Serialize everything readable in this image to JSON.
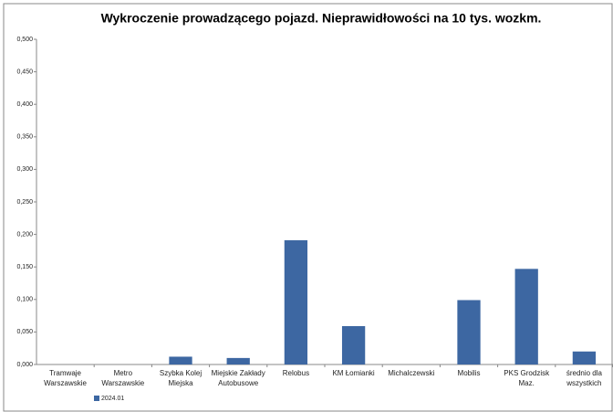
{
  "chart_data": {
    "type": "bar",
    "title": "Wykroczenie prowadzącego pojazd. Nieprawidłowości na 10 tys. wozkm.",
    "categories": [
      "Tramwaje\nWarszawskie",
      "Metro\nWarszawskie",
      "Szybka Kolej\nMiejska",
      "Miejskie Zakłady\nAutobusowe",
      "Relobus",
      "KM Łomianki",
      "Michalczewski",
      "Mobilis",
      "PKS Grodzisk\nMaz.",
      "średnio dla\nwszystkich"
    ],
    "series": [
      {
        "name": "2024.01",
        "color": "#3d67a2",
        "values": [
          0,
          0,
          0.012,
          0.01,
          0.191,
          0.059,
          0,
          0.099,
          0.147,
          0.02
        ]
      }
    ],
    "ylim": [
      0,
      0.5
    ],
    "yticks": [
      {
        "value": 0,
        "label": "0,000"
      },
      {
        "value": 0.05,
        "label": "0,050"
      },
      {
        "value": 0.1,
        "label": "0,100"
      },
      {
        "value": 0.15,
        "label": "0,150"
      },
      {
        "value": 0.2,
        "label": "0,200"
      },
      {
        "value": 0.25,
        "label": "0,250"
      },
      {
        "value": 0.3,
        "label": "0,300"
      },
      {
        "value": 0.35,
        "label": "0,350"
      },
      {
        "value": 0.4,
        "label": "0,400"
      },
      {
        "value": 0.45,
        "label": "0,450"
      },
      {
        "value": 0.5,
        "label": "0,500"
      }
    ],
    "legend": "bottom-left"
  }
}
